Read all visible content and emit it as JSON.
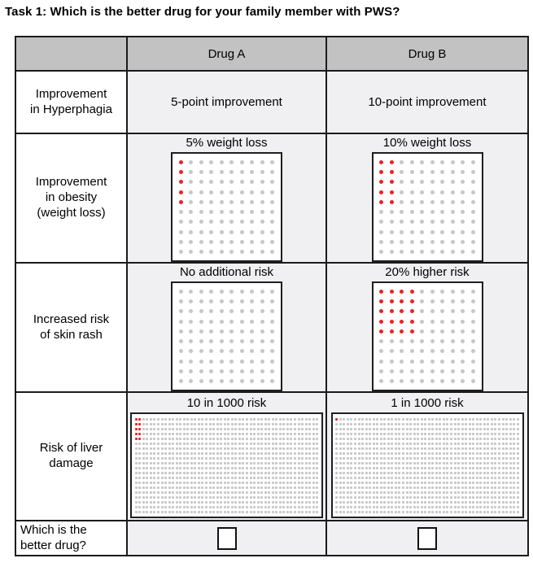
{
  "title": "Task 1: Which is the better drug for your family member with PWS?",
  "columns": {
    "drug_a": "Drug A",
    "drug_b": "Drug B"
  },
  "rows": {
    "hyperphagia": {
      "label_lines": [
        "Improvement",
        "in Hyperphagia"
      ],
      "drug_a": "5-point improvement",
      "drug_b": "10-point improvement"
    },
    "obesity": {
      "label_lines": [
        "Improvement",
        "in obesity",
        "(weight loss)"
      ],
      "drug_a": {
        "caption": "5% weight loss"
      },
      "drug_b": {
        "caption": "10% weight loss"
      }
    },
    "skin_rash": {
      "label_lines": [
        "Increased risk",
        "of skin rash"
      ],
      "drug_a": {
        "caption": "No additional risk"
      },
      "drug_b": {
        "caption": "20% higher risk"
      }
    },
    "liver": {
      "label_lines": [
        "Risk of liver",
        "damage"
      ],
      "drug_a": {
        "caption": "10 in 1000 risk"
      },
      "drug_b": {
        "caption": "1 in 1000 risk"
      }
    },
    "better_drug": {
      "label_lines": [
        "Which is the",
        "better drug?"
      ]
    }
  },
  "chart_data": [
    {
      "type": "pictograph",
      "location": "obesity.drug_a",
      "title": "5% weight loss",
      "rows": 10,
      "cols": 10,
      "total_dots": 100,
      "red_dots": 5
    },
    {
      "type": "pictograph",
      "location": "obesity.drug_b",
      "title": "10% weight loss",
      "rows": 10,
      "cols": 10,
      "total_dots": 100,
      "red_dots": 10
    },
    {
      "type": "pictograph",
      "location": "skin_rash.drug_a",
      "title": "No additional risk",
      "rows": 10,
      "cols": 10,
      "total_dots": 100,
      "red_dots": 0
    },
    {
      "type": "pictograph",
      "location": "skin_rash.drug_b",
      "title": "20% higher risk",
      "rows": 10,
      "cols": 10,
      "total_dots": 100,
      "red_dots": 20
    },
    {
      "type": "pictograph",
      "location": "liver.drug_a",
      "title": "10 in 1000 risk",
      "rows": 20,
      "cols": 50,
      "total_dots": 1000,
      "red_dots": 10
    },
    {
      "type": "pictograph",
      "location": "liver.drug_b",
      "title": "1 in 1000 risk",
      "rows": 20,
      "cols": 50,
      "total_dots": 1000,
      "red_dots": 1
    }
  ],
  "colors": {
    "red": "#ed2224",
    "gray": "#c7c7c7",
    "header_bg": "#c2c2c2",
    "cell_bg": "#f0f0f2"
  }
}
